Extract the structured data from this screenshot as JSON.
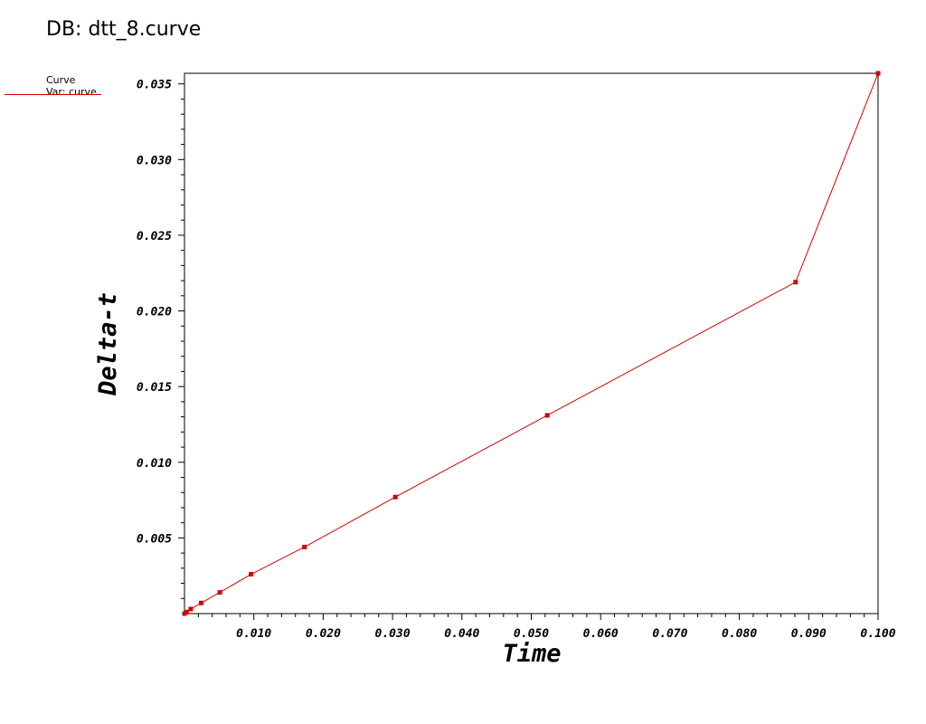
{
  "db_title": "DB: dtt_8.curve",
  "legend": {
    "line1": "Curve",
    "line2": "Var: curve",
    "color": "#d40000"
  },
  "chart_data": {
    "type": "line",
    "xlabel": "Time",
    "ylabel": "Delta-t",
    "xlim": [
      0,
      0.1
    ],
    "ylim": [
      0,
      0.0357
    ],
    "x_ticks": [
      0.01,
      0.02,
      0.03,
      0.04,
      0.05,
      0.06,
      0.07,
      0.08,
      0.09,
      0.1
    ],
    "x_tick_labels": [
      "0.010",
      "0.020",
      "0.030",
      "0.040",
      "0.050",
      "0.060",
      "0.070",
      "0.080",
      "0.090",
      "0.100"
    ],
    "y_ticks": [
      0.005,
      0.01,
      0.015,
      0.02,
      0.025,
      0.03,
      0.035
    ],
    "y_tick_labels": [
      "0.005",
      "0.010",
      "0.015",
      "0.020",
      "0.025",
      "0.030",
      "0.035"
    ],
    "grid": false,
    "legend_position": "top-left",
    "series": [
      {
        "color": "#d40000",
        "x": [
          0.0,
          0.0003,
          0.0009,
          0.0024,
          0.0051,
          0.0096,
          0.0173,
          0.0304,
          0.0523,
          0.0881,
          0.1
        ],
        "y": [
          0.0,
          0.0001,
          0.0003,
          0.0007,
          0.0014,
          0.0026,
          0.0044,
          0.0077,
          0.0131,
          0.0219,
          0.0357
        ]
      }
    ]
  }
}
